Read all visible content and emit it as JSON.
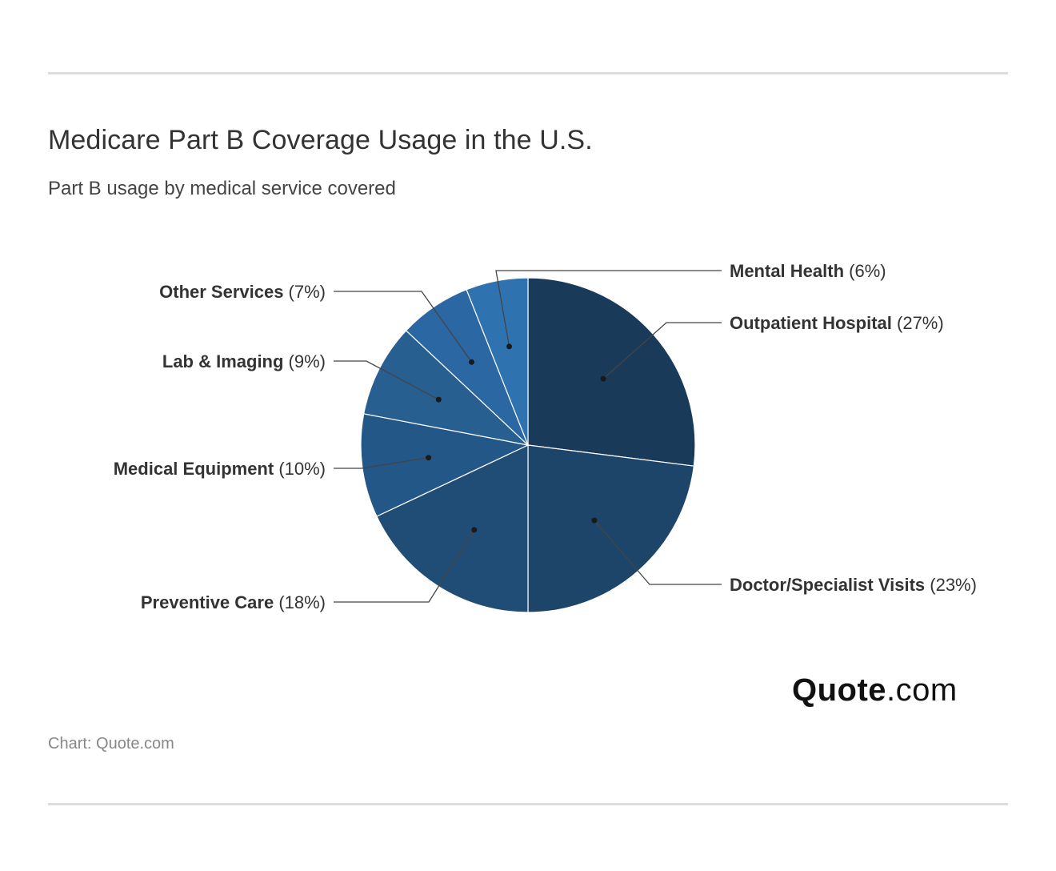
{
  "header": {
    "title": "Medicare Part B Coverage Usage in the U.S.",
    "subtitle": "Part B usage by medical service covered"
  },
  "footer": {
    "source": "Chart: Quote.com",
    "logo_brand": "Quote",
    "logo_tld": ".com"
  },
  "chart_data": {
    "type": "pie",
    "title": "Medicare Part B Coverage Usage in the U.S.",
    "subtitle": "Part B usage by medical service covered",
    "start": "12 o'clock, clockwise",
    "slices": [
      {
        "label": "Outpatient Hospital",
        "value": 27,
        "pct_label": "(27%)",
        "color": "#1a3a5a"
      },
      {
        "label": "Doctor/Specialist Visits",
        "value": 23,
        "pct_label": "(23%)",
        "color": "#1d4469"
      },
      {
        "label": "Preventive Care",
        "value": 18,
        "pct_label": "(18%)",
        "color": "#204d75"
      },
      {
        "label": "Medical Equipment",
        "value": 10,
        "pct_label": "(10%)",
        "color": "#235787"
      },
      {
        "label": "Lab & Imaging",
        "value": 9,
        "pct_label": "(9%)",
        "color": "#285f91"
      },
      {
        "label": "Other Services",
        "value": 7,
        "pct_label": "(7%)",
        "color": "#2b67a2"
      },
      {
        "label": "Mental Health",
        "value": 6,
        "pct_label": "(6%)",
        "color": "#2f72b0"
      }
    ]
  }
}
